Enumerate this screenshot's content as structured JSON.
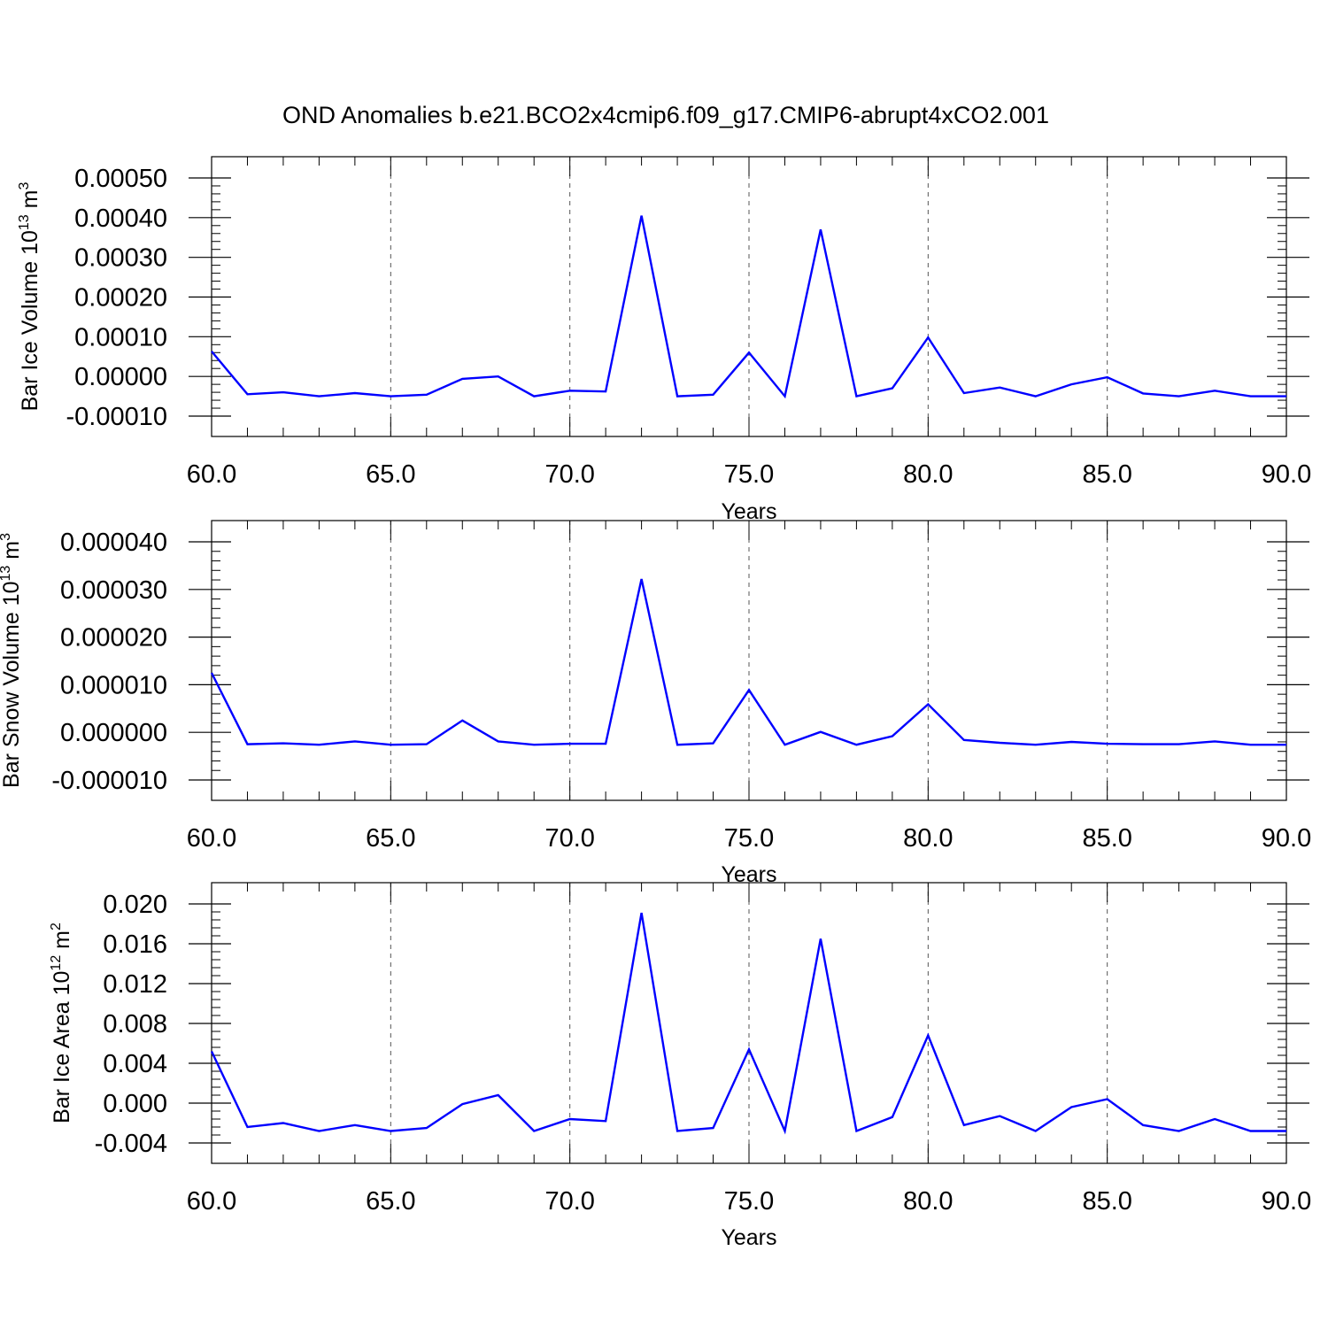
{
  "title": "OND Anomalies b.e21.BCO2x4cmip6.f09_g17.CMIP6-abrupt4xCO2.001",
  "colors": {
    "series": "#0000ff",
    "axis": "#000000",
    "grid": "#555555"
  },
  "chart_data": [
    {
      "type": "line",
      "title": "",
      "xlabel": "Years",
      "ylabel": {
        "text": "Bar Ice Volume 10",
        "sup": "13",
        "unit": " m",
        "unit_sup": "3"
      },
      "xlim": [
        60,
        90
      ],
      "ylim": [
        -0.0001,
        0.0005
      ],
      "x_ticks": [
        60,
        65,
        70,
        75,
        80,
        85,
        90
      ],
      "x_tick_labels": [
        "60.0",
        "65.0",
        "70.0",
        "75.0",
        "80.0",
        "85.0",
        "90.0"
      ],
      "y_ticks": [
        -0.0001,
        0,
        0.0001,
        0.0002,
        0.0003,
        0.0004,
        0.0005
      ],
      "y_tick_labels": [
        "-0.00010",
        "0.00000",
        "0.00010",
        "0.00020",
        "0.00030",
        "0.00040",
        "0.00050"
      ],
      "grid": "vertical dashed at major x ticks",
      "series": [
        {
          "x": [
            60,
            61,
            62,
            63,
            64,
            65,
            66,
            67,
            68,
            69,
            70,
            71,
            72,
            73,
            74,
            75,
            76,
            77,
            78,
            79,
            80,
            81,
            82,
            83,
            84,
            85,
            86,
            87,
            88,
            89,
            90
          ],
          "values": [
            6.3e-05,
            -4.5e-05,
            -4e-05,
            -5e-05,
            -4.2e-05,
            -5e-05,
            -4.6e-05,
            -6e-06,
            0,
            -5e-05,
            -3.6e-05,
            -3.8e-05,
            0.000405,
            -5e-05,
            -4.6e-05,
            6e-05,
            -5e-05,
            0.00037,
            -5e-05,
            -3e-05,
            9.8e-05,
            -4.2e-05,
            -2.8e-05,
            -5e-05,
            -2e-05,
            -2e-06,
            -4.3e-05,
            -5e-05,
            -3.6e-05,
            -5e-05,
            -5e-05
          ]
        }
      ]
    },
    {
      "type": "line",
      "title": "",
      "xlabel": "Years",
      "ylabel": {
        "text": "Bar Snow Volume 10",
        "sup": "13",
        "unit": " m",
        "unit_sup": "3"
      },
      "xlim": [
        60,
        90
      ],
      "ylim": [
        -1e-05,
        4e-05
      ],
      "x_ticks": [
        60,
        65,
        70,
        75,
        80,
        85,
        90
      ],
      "x_tick_labels": [
        "60.0",
        "65.0",
        "70.0",
        "75.0",
        "80.0",
        "85.0",
        "90.0"
      ],
      "y_ticks": [
        -1e-05,
        0,
        1e-05,
        2e-05,
        3e-05,
        4e-05
      ],
      "y_tick_labels": [
        "-0.000010",
        "0.000000",
        "0.000010",
        "0.000020",
        "0.000030",
        "0.000040"
      ],
      "grid": "vertical dashed at major x ticks",
      "series": [
        {
          "x": [
            60,
            61,
            62,
            63,
            64,
            65,
            66,
            67,
            68,
            69,
            70,
            71,
            72,
            73,
            74,
            75,
            76,
            77,
            78,
            79,
            80,
            81,
            82,
            83,
            84,
            85,
            86,
            87,
            88,
            89,
            90
          ],
          "values": [
            1.25e-05,
            -2.5e-06,
            -2.3e-06,
            -2.6e-06,
            -1.9e-06,
            -2.6e-06,
            -2.5e-06,
            2.5e-06,
            -1.9e-06,
            -2.6e-06,
            -2.4e-06,
            -2.4e-06,
            3.22e-05,
            -2.6e-06,
            -2.3e-06,
            8.9e-06,
            -2.6e-06,
            1e-07,
            -2.6e-06,
            -8e-07,
            5.9e-06,
            -1.6e-06,
            -2.2e-06,
            -2.6e-06,
            -2e-06,
            -2.4e-06,
            -2.5e-06,
            -2.5e-06,
            -1.9e-06,
            -2.6e-06,
            -2.6e-06
          ]
        }
      ]
    },
    {
      "type": "line",
      "title": "",
      "xlabel": "Years",
      "ylabel": {
        "text": "Bar Ice Area 10",
        "sup": "12",
        "unit": " m",
        "unit_sup": "2"
      },
      "xlim": [
        60,
        90
      ],
      "ylim": [
        -0.004,
        0.02
      ],
      "x_ticks": [
        60,
        65,
        70,
        75,
        80,
        85,
        90
      ],
      "x_tick_labels": [
        "60.0",
        "65.0",
        "70.0",
        "75.0",
        "80.0",
        "85.0",
        "90.0"
      ],
      "y_ticks": [
        -0.004,
        0,
        0.004,
        0.008,
        0.012,
        0.016,
        0.02
      ],
      "y_tick_labels": [
        "-0.004",
        "0.000",
        "0.004",
        "0.008",
        "0.012",
        "0.016",
        "0.020"
      ],
      "grid": "vertical dashed at major x ticks",
      "series": [
        {
          "x": [
            60,
            61,
            62,
            63,
            64,
            65,
            66,
            67,
            68,
            69,
            70,
            71,
            72,
            73,
            74,
            75,
            76,
            77,
            78,
            79,
            80,
            81,
            82,
            83,
            84,
            85,
            86,
            87,
            88,
            89,
            90
          ],
          "values": [
            0.0052,
            -0.0024,
            -0.002,
            -0.0028,
            -0.0022,
            -0.0028,
            -0.0025,
            -0.0001,
            0.0008,
            -0.0028,
            -0.0016,
            -0.0018,
            0.0191,
            -0.0028,
            -0.0025,
            0.0054,
            -0.0028,
            0.0165,
            -0.0028,
            -0.0014,
            0.0068,
            -0.0022,
            -0.0013,
            -0.0028,
            -0.0004,
            0.0004,
            -0.0022,
            -0.0028,
            -0.0016,
            -0.0028,
            -0.0028
          ]
        }
      ]
    }
  ]
}
